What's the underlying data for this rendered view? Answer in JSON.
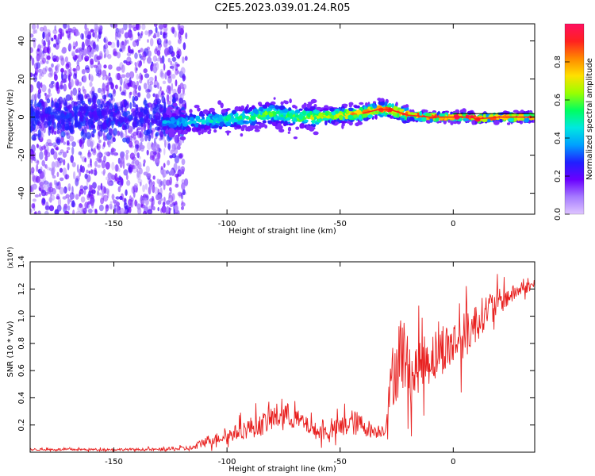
{
  "title": "C2E5.2023.039.01.24.R05",
  "colors": {
    "snr_line": "#e8201f",
    "axes": "#000000",
    "noise_purple": "#6a00ff",
    "ridge_red": "#ff1a1a"
  },
  "chart_data": [
    {
      "type": "heatmap",
      "name": "spectrogram",
      "xlabel": "Height of straight line (km)",
      "ylabel": "Frequency (Hz)",
      "xlim": [
        -187,
        36
      ],
      "ylim": [
        -51,
        49
      ],
      "x_ticks": [
        -150,
        -100,
        -50,
        0
      ],
      "y_ticks": [
        -40,
        -20,
        0,
        20,
        40
      ],
      "colorbar": {
        "label": "Normalized spectral amplitude",
        "range": [
          0,
          1
        ],
        "ticks": [
          0.0,
          0.2,
          0.4,
          0.6,
          0.8
        ],
        "colormap": [
          "#dfc6ff",
          "#a67bff",
          "#6a00ff",
          "#2020ff",
          "#00a0ff",
          "#00e8e0",
          "#00ff60",
          "#9aff00",
          "#ffe000",
          "#ff8800",
          "#ff2020",
          "#ff1060"
        ]
      },
      "ridge": {
        "x": [
          -120,
          -110,
          -100,
          -90,
          -80,
          -75,
          -70,
          -60,
          -50,
          -40,
          -33,
          -28,
          -20,
          -10,
          0,
          8,
          10,
          20,
          36
        ],
        "frequency": [
          -3,
          -2,
          -1,
          0,
          2,
          1,
          0,
          0,
          1,
          2,
          4,
          4,
          1,
          0,
          0,
          0,
          -1,
          0,
          0
        ],
        "amplitude": [
          0.4,
          0.45,
          0.5,
          0.55,
          0.6,
          0.55,
          0.6,
          0.7,
          0.75,
          0.8,
          0.85,
          0.85,
          0.85,
          0.9,
          0.95,
          0.95,
          0.95,
          0.95,
          0.95
        ]
      },
      "noise_region": {
        "x_range": [
          -187,
          -118
        ],
        "amplitude": 0.15
      }
    },
    {
      "type": "line",
      "name": "snr",
      "xlabel": "Height of straight line (km)",
      "ylabel": "SNR (10 * v/v)",
      "y_multiplier": "(x10⁴)",
      "xlim": [
        -187,
        36
      ],
      "ylim": [
        0,
        1.4
      ],
      "x_ticks": [
        -150,
        -100,
        -50,
        0
      ],
      "y_ticks": [
        0.2,
        0.4,
        0.6,
        0.8,
        1.0,
        1.2,
        1.4
      ],
      "series": [
        {
          "x": [
            -187,
            -170,
            -150,
            -130,
            -115,
            -110,
            -105,
            -100,
            -95,
            -90,
            -85,
            -80,
            -75,
            -70,
            -65,
            -60,
            -55,
            -50,
            -45,
            -40,
            -35,
            -30,
            -28,
            -26,
            -24,
            -22,
            -20,
            -18,
            -15,
            -10,
            -5,
            0,
            5,
            10,
            15,
            20,
            25,
            30,
            36
          ],
          "y": [
            0.02,
            0.02,
            0.02,
            0.02,
            0.03,
            0.08,
            0.1,
            0.12,
            0.15,
            0.18,
            0.2,
            0.25,
            0.28,
            0.25,
            0.2,
            0.15,
            0.15,
            0.18,
            0.22,
            0.2,
            0.15,
            0.17,
            0.45,
            0.6,
            0.7,
            0.75,
            0.6,
            0.55,
            0.65,
            0.7,
            0.75,
            0.8,
            0.85,
            0.95,
            1.05,
            1.1,
            1.15,
            1.2,
            1.23
          ],
          "jitter": [
            0.008,
            0.008,
            0.008,
            0.01,
            0.02,
            0.04,
            0.04,
            0.05,
            0.06,
            0.08,
            0.08,
            0.1,
            0.1,
            0.08,
            0.06,
            0.06,
            0.06,
            0.08,
            0.1,
            0.08,
            0.05,
            0.05,
            0.15,
            0.25,
            0.3,
            0.3,
            0.25,
            0.2,
            0.2,
            0.2,
            0.18,
            0.18,
            0.18,
            0.15,
            0.12,
            0.1,
            0.07,
            0.05,
            0.03
          ]
        }
      ]
    }
  ]
}
